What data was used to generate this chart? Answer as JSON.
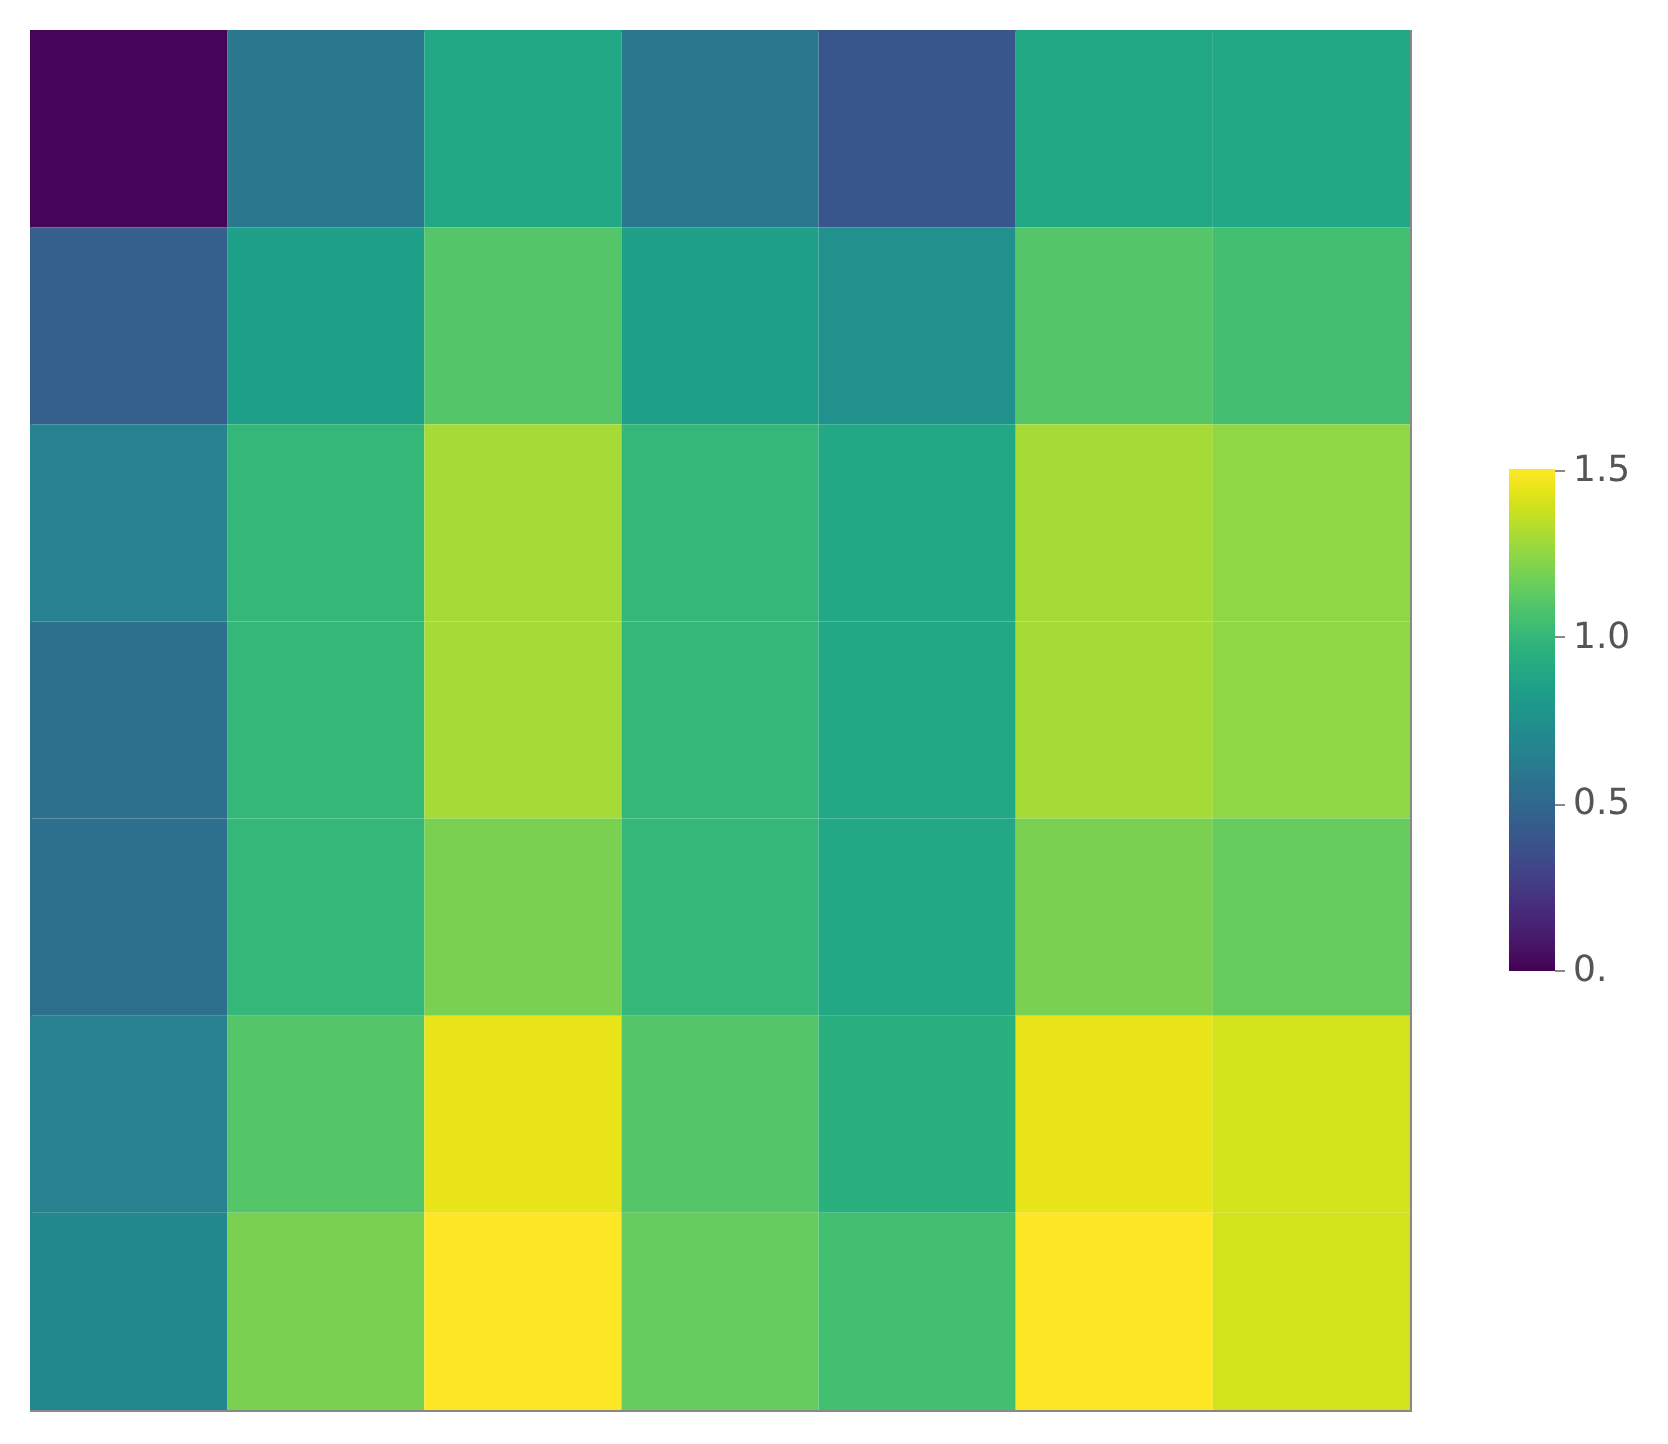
{
  "chart_data": {
    "type": "heatmap",
    "categories": [
      null,
      null,
      null,
      null,
      null,
      null,
      null
    ],
    "y_categories": [
      null,
      null,
      null,
      null,
      null,
      null,
      null
    ],
    "cells": [
      [
        0.02,
        0.6,
        0.9,
        0.6,
        0.4,
        0.9,
        0.9
      ],
      [
        0.45,
        0.85,
        1.1,
        0.85,
        0.75,
        1.1,
        1.05
      ],
      [
        0.65,
        1.0,
        1.3,
        1.0,
        0.9,
        1.3,
        1.25
      ],
      [
        0.55,
        1.0,
        1.3,
        1.0,
        0.9,
        1.3,
        1.25
      ],
      [
        0.55,
        1.0,
        1.2,
        1.0,
        0.9,
        1.2,
        1.15
      ],
      [
        0.65,
        1.1,
        1.45,
        1.1,
        0.95,
        1.45,
        1.4
      ],
      [
        0.7,
        1.2,
        1.5,
        1.15,
        1.05,
        1.5,
        1.4
      ]
    ],
    "clim": [
      0,
      1.5
    ],
    "cticks": [
      {
        "value": 0,
        "label": "0."
      },
      0.5,
      {
        "value": 1,
        "label": "1.0"
      },
      1.5
    ],
    "tick_labels": false
  }
}
